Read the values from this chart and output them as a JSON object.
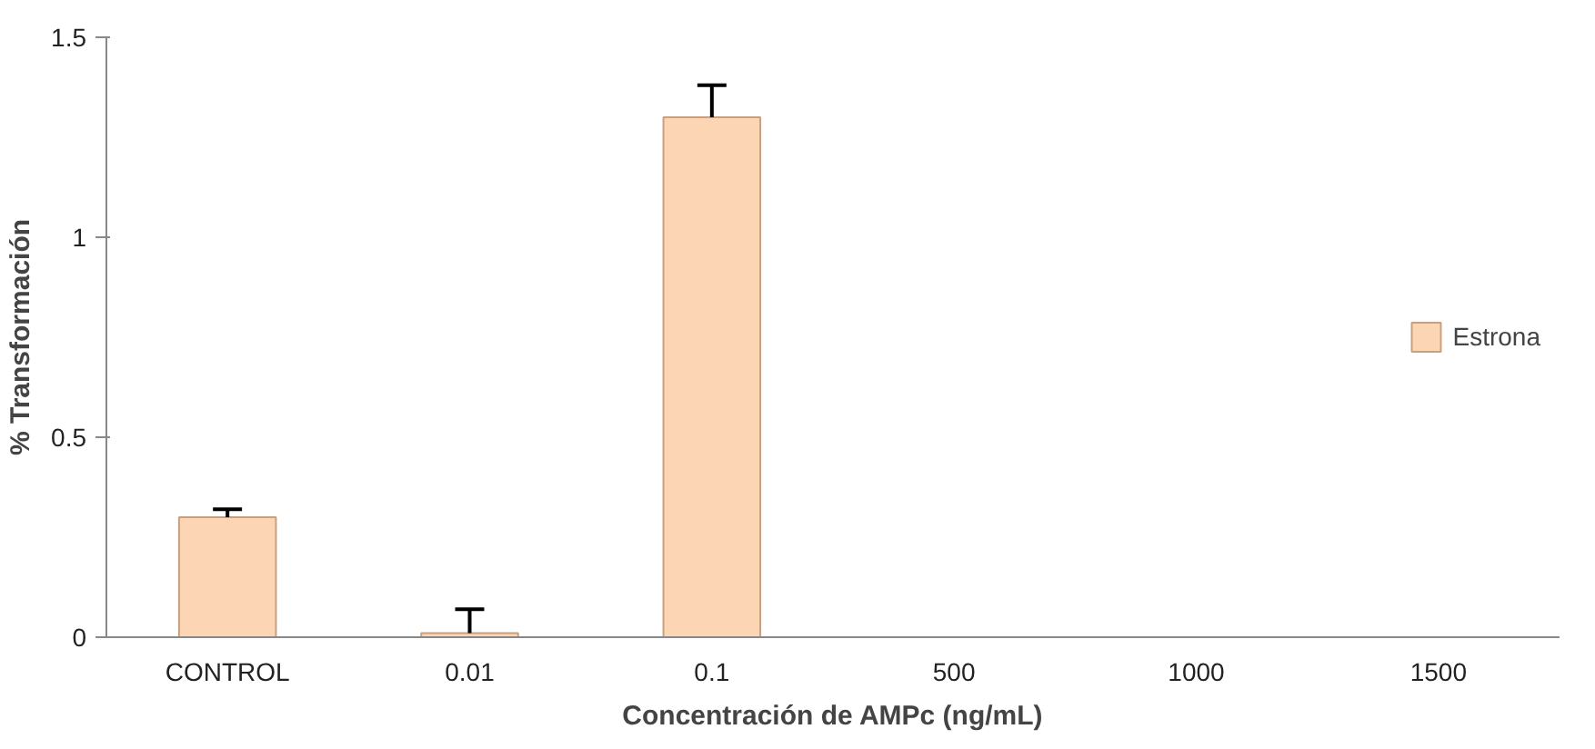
{
  "chart_data": {
    "type": "bar",
    "xlabel": "Concentración de AMPc (ng/mL)",
    "ylabel": "% Transformación",
    "categories": [
      "CONTROL",
      "0.01",
      "0.1",
      "500",
      "1000",
      "1500"
    ],
    "series": [
      {
        "name": "Estrona",
        "color": "#fcd5b4",
        "values": [
          0.3,
          0.01,
          1.3,
          null,
          null,
          null
        ],
        "errors": [
          [
            0.3,
            0.32
          ],
          [
            0.01,
            0.07
          ],
          [
            1.3,
            1.38
          ],
          null,
          null,
          null
        ]
      }
    ],
    "ylim": [
      0,
      1.5
    ],
    "yticks": [
      0,
      0.5,
      1,
      1.5
    ],
    "grid": false,
    "legend": "right"
  }
}
